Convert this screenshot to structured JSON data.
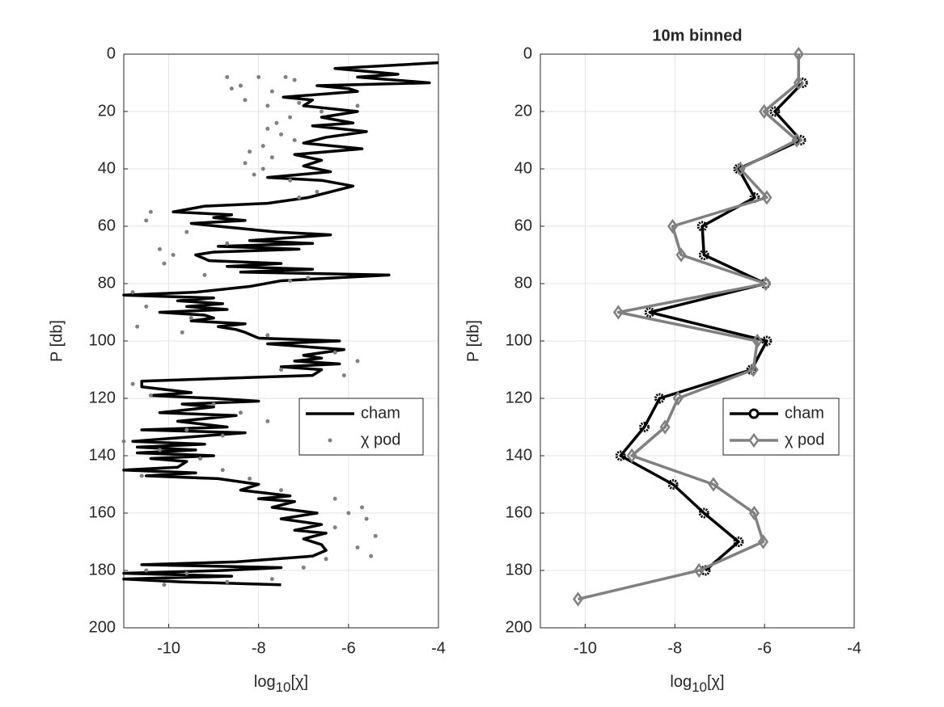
{
  "chart_data": [
    {
      "type": "profile",
      "xlabel": {
        "base": "log",
        "sub": "10",
        "rest": "[χ]"
      },
      "ylabel": "P [db]",
      "xlim": [
        -11,
        -4
      ],
      "xticks": [
        -10,
        -8,
        -6,
        -4
      ],
      "ylim": [
        0,
        200
      ],
      "yticks": [
        0,
        20,
        40,
        60,
        80,
        100,
        120,
        140,
        160,
        180,
        200
      ],
      "y_reversed": true,
      "grid": true,
      "legend": "east",
      "series": [
        {
          "name": "cham",
          "color": "#000000",
          "style": "line",
          "x": [
            -4.0,
            -6.3,
            -4.9,
            -5.8,
            -4.2,
            -6.7,
            -6.0,
            -5.8,
            -7.45,
            -6.8,
            -7.0,
            -5.8,
            -6.6,
            -5.9,
            -6.8,
            -5.6,
            -6.5,
            -7.0,
            -5.7,
            -7.2,
            -6.6,
            -7.0,
            -6.4,
            -7.8,
            -6.6,
            -5.9,
            -6.4,
            -6.9,
            -7.8,
            -9.2,
            -9.9,
            -8.6,
            -9.0,
            -8.3,
            -9.5,
            -8.9,
            -7.6,
            -6.4,
            -8.2,
            -6.8,
            -8.9,
            -7.1,
            -9.0,
            -9.4,
            -9.1,
            -7.5,
            -8.7,
            -6.8,
            -8.4,
            -5.1,
            -7.5,
            -8.2,
            -9.4,
            -11.0,
            -9.0,
            -9.8,
            -8.8,
            -9.6,
            -8.7,
            -10.2,
            -9.2,
            -9.0,
            -9.5,
            -8.3,
            -8.9,
            -8.5,
            -8.3,
            -8.0,
            -6.2,
            -7.8,
            -6.1,
            -7.0,
            -6.6,
            -7.2,
            -6.2,
            -7.5,
            -6.6,
            -6.8,
            -10.6,
            -10.6,
            -9.5,
            -10.4,
            -9.0,
            -8.0,
            -9.7,
            -9.0,
            -10.2,
            -8.5,
            -9.8,
            -8.7,
            -10.6,
            -8.3,
            -10.0,
            -10.8,
            -9.2,
            -10.7,
            -9.4,
            -10.7,
            -9.0,
            -10.4,
            -9.6,
            -9.8,
            -11.0,
            -9.4,
            -10.5,
            -8.9,
            -8.0,
            -8.4,
            -7.3,
            -8.0,
            -7.2,
            -7.7,
            -6.7,
            -7.5,
            -6.6,
            -7.2,
            -6.5,
            -7.0,
            -6.6,
            -6.5,
            -6.8,
            -8.5,
            -10.6,
            -7.5,
            -8.8,
            -11.0,
            -8.6,
            -11.0,
            -9.7,
            -7.5
          ],
          "y": [
            3,
            5,
            7,
            8,
            10,
            11,
            12,
            13,
            15,
            16,
            18,
            20,
            22,
            24,
            25,
            27,
            29,
            31,
            33,
            35,
            37,
            39,
            41,
            43,
            44,
            46,
            48,
            50,
            52,
            53,
            55,
            56,
            57,
            58,
            59,
            60,
            62,
            63,
            65,
            66,
            67,
            68,
            69,
            70,
            72,
            73,
            74,
            75,
            76,
            77,
            79,
            81,
            83,
            84,
            85,
            86,
            87,
            88,
            89,
            90,
            91,
            92,
            93,
            94,
            95,
            96,
            97,
            99,
            100,
            101,
            103,
            105,
            106,
            107,
            108,
            109,
            110,
            112,
            114,
            116,
            118,
            119,
            120,
            121,
            122,
            123,
            125,
            126,
            128,
            130,
            131,
            132,
            134,
            135,
            136,
            137,
            138,
            139,
            140,
            141,
            142,
            144,
            145,
            146,
            147,
            148,
            150,
            152,
            154,
            155,
            156,
            158,
            160,
            162,
            164,
            166,
            167,
            169,
            171,
            173,
            175,
            177,
            178,
            179,
            180,
            181,
            182,
            183,
            184,
            185
          ]
        },
        {
          "name": "χ pod",
          "color": "#808080",
          "style": "dots",
          "x": [
            -8.7,
            -8.0,
            -7.4,
            -7.2,
            -8.4,
            -8.6,
            -7.7,
            -8.3,
            -7.8,
            -7.1,
            -6.6,
            -5.8,
            -7.3,
            -7.6,
            -7.8,
            -7.5,
            -7.2,
            -7.9,
            -8.2,
            -7.7,
            -8.3,
            -7.9,
            -8.1,
            -7.3,
            -6.7,
            -7.1,
            -10.4,
            -10.5,
            -9.6,
            -8.7,
            -10.2,
            -9.9,
            -10.1,
            -9.2,
            -7.3,
            -6.9,
            -10.8,
            -10.5,
            -9.5,
            -10.7,
            -9.7,
            -7.8,
            -6.3,
            -5.8,
            -6.1,
            -7.5,
            -10.8,
            -10.4,
            -9.0,
            -8.4,
            -7.8,
            -9.6,
            -8.8,
            -11.0,
            -10.2,
            -9.3,
            -10.6,
            -8.8,
            -8.2,
            -7.5,
            -6.3,
            -5.7,
            -6.0,
            -5.6,
            -6.3,
            -5.4,
            -5.8,
            -5.5,
            -6.5,
            -7.0,
            -10.5,
            -9.6,
            -10.1,
            -8.7,
            -7.7
          ],
          "y": [
            8,
            8,
            8,
            9,
            11,
            12,
            13,
            16,
            18,
            17,
            20,
            18,
            22,
            24,
            26,
            28,
            30,
            32,
            34,
            36,
            38,
            40,
            42,
            44,
            48,
            50,
            55,
            58,
            62,
            66,
            68,
            70,
            73,
            77,
            79,
            78,
            83,
            88,
            92,
            95,
            97,
            98,
            104,
            107,
            112,
            110,
            115,
            119,
            122,
            125,
            128,
            131,
            133,
            135,
            138,
            141,
            147,
            145,
            148,
            152,
            155,
            158,
            160,
            162,
            165,
            168,
            172,
            175,
            176,
            179,
            180,
            181,
            185,
            184,
            183
          ]
        }
      ]
    },
    {
      "type": "profile",
      "title": "10m binned",
      "xlabel": {
        "base": "log",
        "sub": "10",
        "rest": "[χ]"
      },
      "ylabel": "P [db]",
      "xlim": [
        -11,
        -4
      ],
      "xticks": [
        -10,
        -8,
        -6,
        -4
      ],
      "ylim": [
        0,
        200
      ],
      "yticks": [
        0,
        20,
        40,
        60,
        80,
        100,
        120,
        140,
        160,
        180,
        200
      ],
      "y_reversed": true,
      "grid": true,
      "legend": "east",
      "series": [
        {
          "name": "cham",
          "color": "#000000",
          "style": "line-circle",
          "x": [
            -5.15,
            -5.77,
            -5.19,
            -6.58,
            -6.22,
            -7.39,
            -7.35,
            -5.98,
            -8.56,
            -5.95,
            -6.29,
            -8.34,
            -8.68,
            -9.21,
            -8.04,
            -7.35,
            -6.58,
            -7.32
          ],
          "y": [
            10,
            20,
            30,
            40,
            50,
            60,
            70,
            80,
            90,
            100,
            110,
            120,
            130,
            140,
            150,
            160,
            170,
            180
          ]
        },
        {
          "name": "χ pod",
          "color": "#808080",
          "style": "line-diamond",
          "x": [
            -5.24,
            -5.24,
            -6.01,
            -5.28,
            -6.54,
            -5.95,
            -8.05,
            -7.86,
            -5.97,
            -9.26,
            -6.16,
            -6.25,
            -7.93,
            -8.22,
            -8.96,
            -7.14,
            -6.23,
            -6.03,
            -7.46,
            -10.16
          ],
          "y": [
            0,
            10,
            20,
            30,
            40,
            50,
            60,
            70,
            80,
            90,
            100,
            110,
            120,
            130,
            140,
            150,
            160,
            170,
            180,
            190
          ]
        }
      ]
    }
  ]
}
